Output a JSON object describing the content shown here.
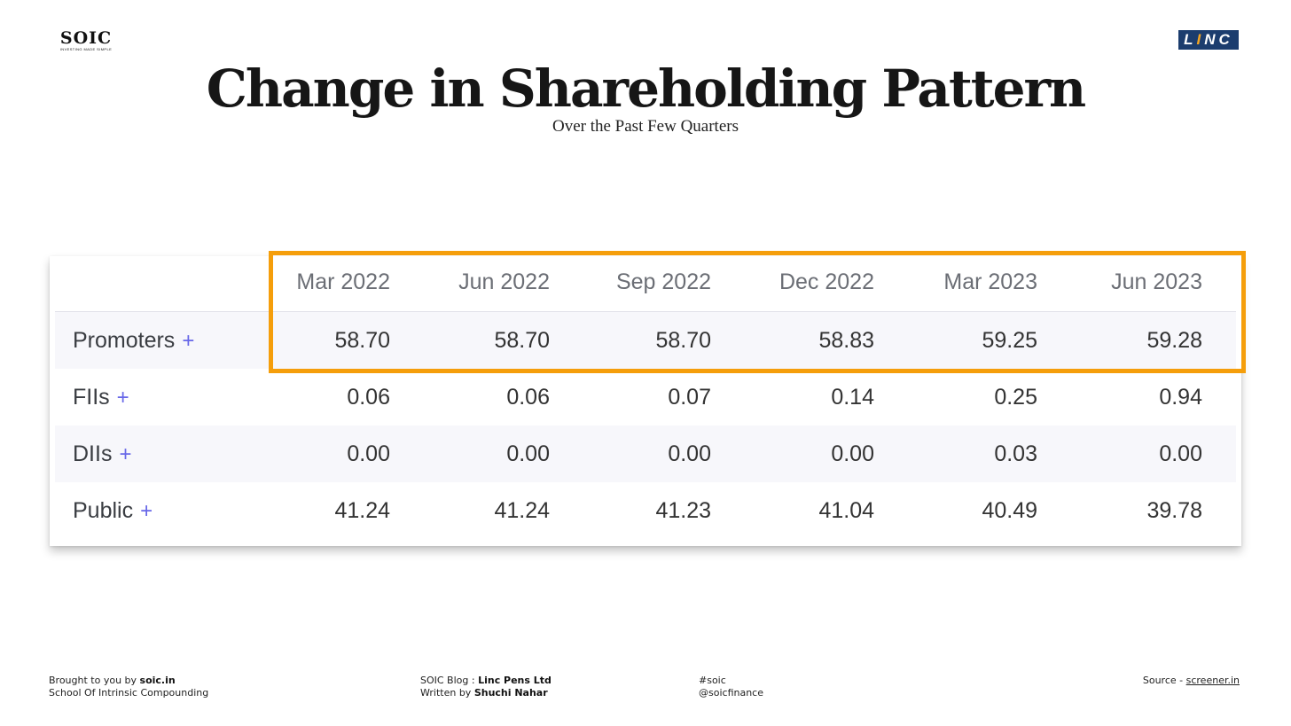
{
  "logos": {
    "left_main": "SOIC",
    "left_tagline": "INVESTING MADE SIMPLE",
    "right_prefix": "L",
    "right_accent": "I",
    "right_suffix": "NC"
  },
  "title": "Change in Shareholding Pattern",
  "subtitle": "Over the Past Few Quarters",
  "table": {
    "columns": [
      "Mar 2022",
      "Jun 2022",
      "Sep 2022",
      "Dec 2022",
      "Mar 2023",
      "Jun 2023"
    ],
    "expand_symbol": "+",
    "rows": [
      {
        "label": "Promoters",
        "values": [
          "58.70",
          "58.70",
          "58.70",
          "58.83",
          "59.25",
          "59.28"
        ]
      },
      {
        "label": "FIIs",
        "values": [
          "0.06",
          "0.06",
          "0.07",
          "0.14",
          "0.25",
          "0.94"
        ]
      },
      {
        "label": "DIIs",
        "values": [
          "0.00",
          "0.00",
          "0.00",
          "0.00",
          "0.03",
          "0.00"
        ]
      },
      {
        "label": "Public",
        "values": [
          "41.24",
          "41.24",
          "41.23",
          "41.04",
          "40.49",
          "39.78"
        ]
      }
    ],
    "highlight_color": "#f59e0b"
  },
  "footer": {
    "brought_prefix": "Brought to you by ",
    "brought_site": "soic.in",
    "school": "School Of Intrinsic Compounding",
    "blog_prefix": "SOIC Blog : ",
    "blog_company": "Linc Pens Ltd",
    "written_prefix": "Written by ",
    "author": "Shuchi Nahar",
    "hashtag": "#soic",
    "handle": "@soicfinance",
    "source_prefix": "Source - ",
    "source_site": "screener.in"
  }
}
